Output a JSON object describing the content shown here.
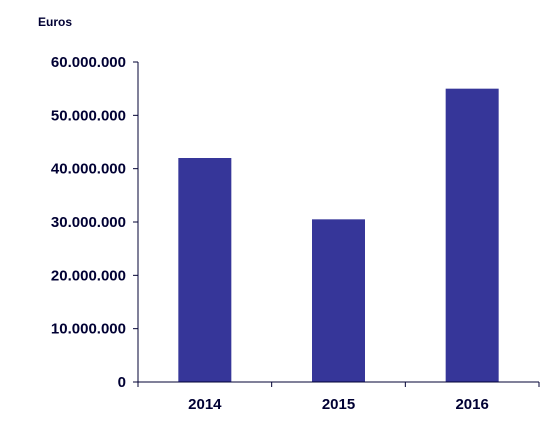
{
  "chart_data": {
    "type": "bar",
    "title": "",
    "xlabel": "",
    "ylabel": "Euros",
    "categories": [
      "2014",
      "2015",
      "2016"
    ],
    "values": [
      42000000,
      30500000,
      55000000
    ],
    "ylim": [
      0,
      60000000
    ],
    "yticks": [
      0,
      10000000,
      20000000,
      30000000,
      40000000,
      50000000,
      60000000
    ],
    "ytick_labels": [
      "0",
      "10.000.000",
      "20.000.000",
      "30.000.000",
      "40.000.000",
      "50.000.000",
      "60.000.000"
    ],
    "bar_color": "#363699",
    "grid": false,
    "legend": "none"
  }
}
